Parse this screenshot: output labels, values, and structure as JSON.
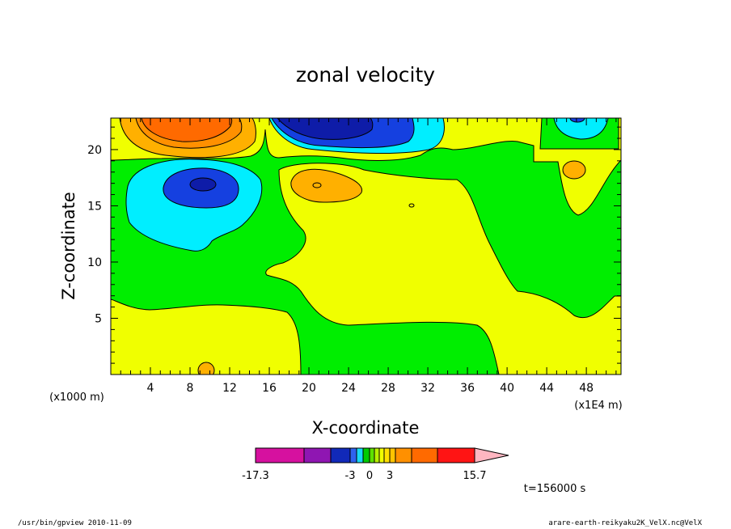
{
  "chart_data": {
    "type": "heatmap",
    "title": "zonal velocity",
    "xlabel": "X-coordinate",
    "ylabel": "Z-coordinate",
    "x_unit_label": "(x1000 m)",
    "x_scale_label": "(x1E4 m)",
    "x_ticks": [
      "4",
      "8",
      "12",
      "16",
      "20",
      "24",
      "28",
      "32",
      "36",
      "40",
      "44",
      "48"
    ],
    "y_ticks": [
      "5",
      "10",
      "15",
      "20"
    ],
    "xlim": [
      0,
      51.5
    ],
    "ylim": [
      0,
      22.8
    ],
    "time_label": "t=156000 s",
    "colorbar": {
      "labels": [
        "-17.3",
        "-3",
        "0",
        "3",
        "15.7"
      ],
      "colors": [
        "#d6119f",
        "#8f16b2",
        "#1129b9",
        "#2f63ee",
        "#18d9f7",
        "#00cc00",
        "#5ee000",
        "#b7f000",
        "#f0ff00",
        "#ffe000",
        "#ffc400",
        "#ff9000",
        "#ff6a00",
        "#ff1414",
        "#ff7f7f",
        "#ffb6c1"
      ],
      "range": [
        -17.3,
        15.7
      ]
    },
    "fill_colors": {
      "green": "#00ee00",
      "yellow": "#f0ff00",
      "cyan": "#00eeff",
      "blue": "#1540e0",
      "darkblue": "#0e1ca8",
      "orange_light": "#ffb000",
      "orange": "#ff6a00",
      "orange_mid": "#ff9000"
    }
  },
  "footer": {
    "left": "/usr/bin/gpview   2010-11-09",
    "right": "arare-earth-reikyaku2K_VelX.nc@VelX"
  }
}
